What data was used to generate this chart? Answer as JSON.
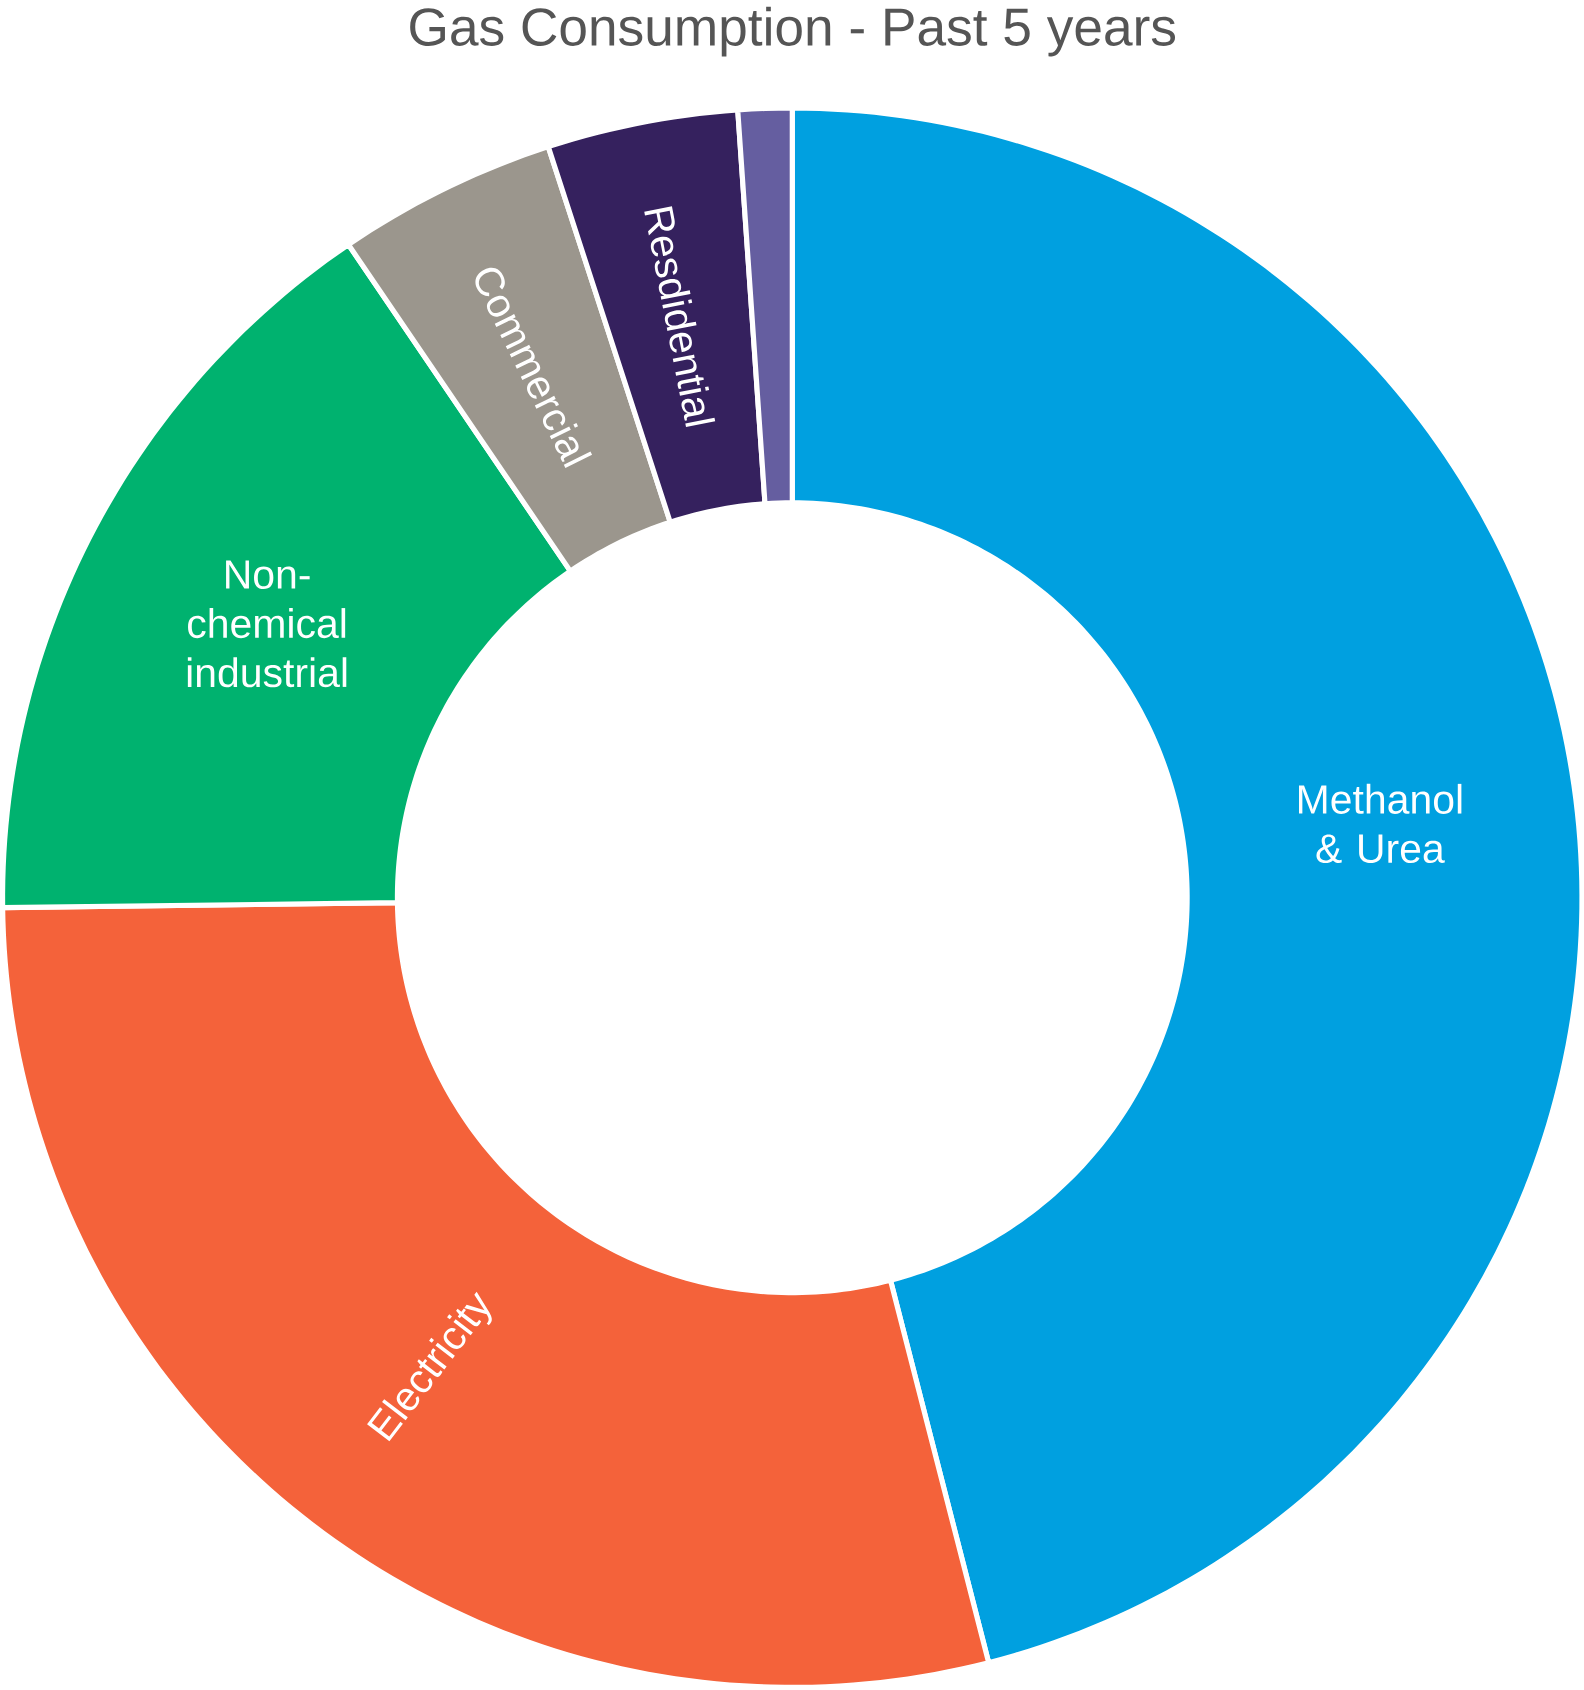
{
  "chart_data": {
    "type": "donut",
    "title": "Gas Consumption - Past 5 years",
    "categories": [
      "Methanol & Urea",
      "Electricity",
      "Non-chemical industrial",
      "Commercial",
      "Resdidential",
      null
    ],
    "values": [
      46,
      28.8,
      15.7,
      4.5,
      3.9,
      1.1
    ],
    "colors": [
      "#00a0e0",
      "#f4623a",
      "#00b26f",
      "#9b968d",
      "#35215e",
      "#655ea0"
    ]
  }
}
